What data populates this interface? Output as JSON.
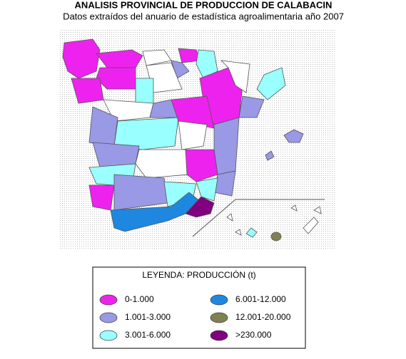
{
  "header": {
    "title": "ANALISIS PROVINCIAL DE PRODUCCION DE CALABACIN",
    "subtitle": "Datos extraídos del anuario de estadística agroalimentaria año 2007"
  },
  "legend": {
    "title": "LEYENDA: PRODUCCIÓN (t)",
    "items": [
      {
        "label": "0-1.000",
        "color": "#ee22ee"
      },
      {
        "label": "1.001-3.000",
        "color": "#9999e6"
      },
      {
        "label": "3.001-6.000",
        "color": "#99ffff"
      },
      {
        "label": "6.001-12.000",
        "color": "#1e88e0"
      },
      {
        "label": "12.001-20.000",
        "color": "#808050"
      },
      {
        "label": ">230.000",
        "color": "#800080"
      }
    ]
  }
}
